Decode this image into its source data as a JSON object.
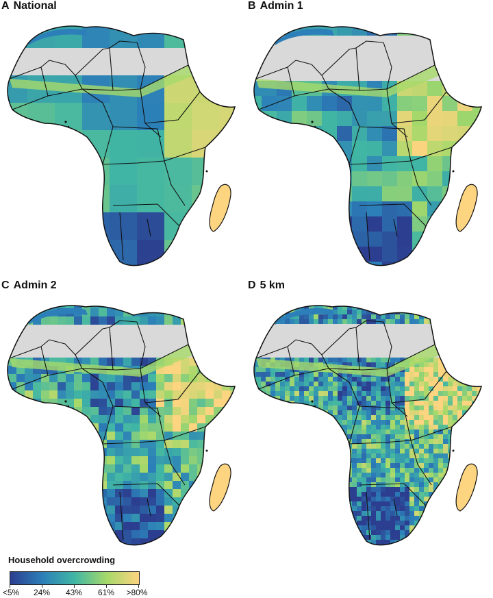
{
  "colors": {
    "no_data": "#d9d9d9",
    "border": "#111111",
    "scale": [
      "#2c3e8f",
      "#2c7fb8",
      "#41b6a4",
      "#a6d96a",
      "#fdd480",
      "#fec44f"
    ]
  },
  "panels": [
    {
      "letter": "A",
      "title": "National",
      "detail": "national"
    },
    {
      "letter": "B",
      "title": "Admin 1",
      "detail": "admin1"
    },
    {
      "letter": "C",
      "title": "Admin 2",
      "detail": "admin2"
    },
    {
      "letter": "D",
      "title": "5 km",
      "detail": "km5"
    }
  ],
  "legend": {
    "title": "Household overcrowding",
    "labels": [
      "<5%",
      "24%",
      "43%",
      "61%",
      ">80%"
    ]
  }
}
